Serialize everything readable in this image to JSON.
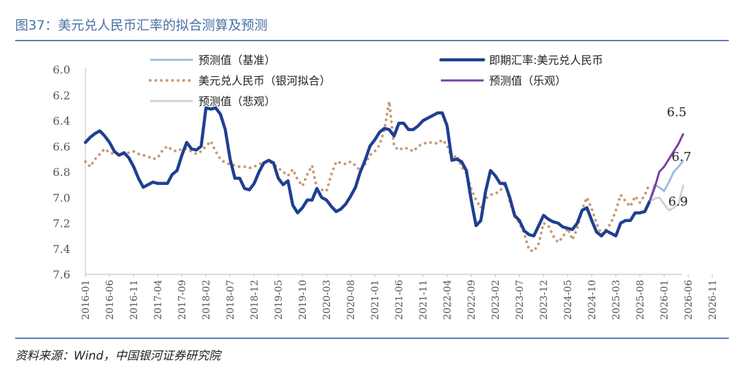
{
  "header": {
    "title": "图37：美元兑人民币汇率的拟合测算及预测"
  },
  "footer": {
    "source": "资料来源：Wind，中国银河证券研究院"
  },
  "colors": {
    "spot": "#1f3f92",
    "fit": "#c79a76",
    "base": "#9dbde0",
    "optimistic": "#7a3fa0",
    "pessimistic": "#d2d2d2",
    "axis": "#bbbbbb",
    "title": "#4a6fa5"
  },
  "chart_data": {
    "type": "line",
    "title": "美元兑人民币汇率的拟合测算及预测",
    "ylim": [
      7.6,
      6.0
    ],
    "y_inverted": true,
    "yticks": [
      "6.0",
      "6.2",
      "6.4",
      "6.6",
      "6.8",
      "7.0",
      "7.2",
      "7.4",
      "7.6"
    ],
    "x_labels": [
      "2016-01",
      "2016-06",
      "2016-11",
      "2017-04",
      "2017-09",
      "2018-02",
      "2018-07",
      "2018-12",
      "2019-05",
      "2019-10",
      "2020-03",
      "2020-08",
      "2021-01",
      "2021-06",
      "2021-11",
      "2022-04",
      "2022-09",
      "2023-02",
      "2023-07",
      "2023-12",
      "2024-05",
      "2024-10",
      "2025-03",
      "2025-08",
      "2026-01",
      "2026-06",
      "2026-11"
    ],
    "legend": [
      "预测值（基准）",
      "即期汇率:美元兑人民币",
      "美元兑人民币（银河拟合）",
      "预测值（乐观）",
      "预测值（悲观）"
    ],
    "annotations": [
      "6.5",
      "6.7",
      "6.9"
    ],
    "series": [
      {
        "name": "即期汇率:美元兑人民币",
        "start_index": 0,
        "values": [
          6.57,
          6.53,
          6.5,
          6.48,
          6.52,
          6.57,
          6.64,
          6.67,
          6.65,
          6.69,
          6.76,
          6.85,
          6.92,
          6.9,
          6.88,
          6.89,
          6.89,
          6.89,
          6.82,
          6.79,
          6.67,
          6.57,
          6.62,
          6.63,
          6.6,
          6.3,
          6.31,
          6.3,
          6.35,
          6.47,
          6.7,
          6.85,
          6.85,
          6.93,
          6.94,
          6.89,
          6.8,
          6.73,
          6.71,
          6.73,
          6.85,
          6.9,
          6.87,
          7.06,
          7.12,
          7.08,
          7.02,
          7.02,
          6.93,
          7.0,
          7.02,
          7.07,
          7.11,
          7.09,
          7.05,
          6.99,
          6.92,
          6.8,
          6.71,
          6.6,
          6.55,
          6.49,
          6.46,
          6.47,
          6.52,
          6.42,
          6.42,
          6.47,
          6.47,
          6.44,
          6.4,
          6.38,
          6.36,
          6.34,
          6.34,
          6.44,
          6.71,
          6.7,
          6.72,
          6.79,
          7.02,
          7.22,
          7.18,
          6.95,
          6.79,
          6.83,
          6.89,
          6.89,
          7.0,
          7.14,
          7.18,
          7.26,
          7.29,
          7.3,
          7.22,
          7.14,
          7.17,
          7.19,
          7.2,
          7.23,
          7.24,
          7.25,
          7.2,
          7.1,
          7.08,
          7.18,
          7.27,
          7.3,
          7.26,
          7.28,
          7.3,
          7.2,
          7.18,
          7.18,
          7.12,
          7.12,
          7.11,
          7.03
        ]
      },
      {
        "name": "美元兑人民币（银河拟合）",
        "start_index": 0,
        "values": [
          6.72,
          6.76,
          6.7,
          6.66,
          6.62,
          6.65,
          6.66,
          6.67,
          6.66,
          6.65,
          6.64,
          6.66,
          6.67,
          6.68,
          6.7,
          6.69,
          6.63,
          6.6,
          6.63,
          6.64,
          6.62,
          6.62,
          6.64,
          6.66,
          6.64,
          6.6,
          6.56,
          6.64,
          6.7,
          6.73,
          6.74,
          6.75,
          6.76,
          6.76,
          6.77,
          6.76,
          6.74,
          6.73,
          6.72,
          6.74,
          6.77,
          6.8,
          6.83,
          6.78,
          6.86,
          6.91,
          6.82,
          6.75,
          6.93,
          6.94,
          6.95,
          6.82,
          6.72,
          6.73,
          6.74,
          6.72,
          6.75,
          6.79,
          6.74,
          6.67,
          6.64,
          6.59,
          6.47,
          6.25,
          6.6,
          6.63,
          6.61,
          6.62,
          6.64,
          6.6,
          6.58,
          6.57,
          6.57,
          6.58,
          6.55,
          6.59,
          6.7,
          6.67,
          6.76,
          6.81,
          6.93,
          7.02,
          7.08,
          7.01,
          6.98,
          6.97,
          6.95,
          6.88,
          7.03,
          7.15,
          7.2,
          7.28,
          7.41,
          7.42,
          7.36,
          7.2,
          7.22,
          7.3,
          7.35,
          7.31,
          7.24,
          7.33,
          7.24,
          7.09,
          7.0,
          7.09,
          7.2,
          7.29,
          7.25,
          7.2,
          7.1,
          6.98,
          7.03,
          7.07,
          6.99,
          7.04,
          6.98,
          6.89
        ]
      },
      {
        "name": "预测值（基准）",
        "start_index": 117,
        "values": [
          7.03,
          6.9,
          6.92,
          6.95,
          6.88,
          6.8,
          6.76,
          6.71
        ]
      },
      {
        "name": "预测值（乐观）",
        "start_index": 117,
        "values": [
          7.03,
          6.93,
          6.8,
          6.76,
          6.7,
          6.64,
          6.58,
          6.5
        ]
      },
      {
        "name": "预测值（悲观）",
        "start_index": 117,
        "values": [
          7.03,
          7.01,
          7.0,
          7.05,
          7.1,
          7.08,
          7.05,
          6.9
        ]
      }
    ]
  }
}
